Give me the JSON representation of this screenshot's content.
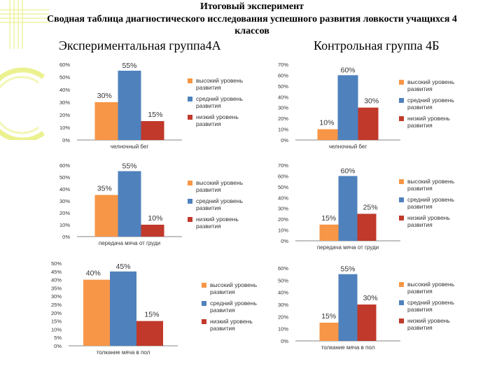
{
  "header": {
    "title": "Итоговый эксперимент",
    "subtitle": "Сводная таблица диагностического исследования успешного развития ловкости учащихся 4 классов"
  },
  "groups": {
    "experimental": "Экспериментальная группа4А",
    "control": "Контрольная группа 4Б"
  },
  "legend": {
    "high": "высокий уровень развития",
    "mid": "средний уровень развития",
    "low": "низкий уровень развития"
  },
  "colors": {
    "high": "#F79646",
    "mid": "#4F81BD",
    "low": "#C0392B",
    "axis": "#868686",
    "deco": "#E8EE7A"
  },
  "chart_data": [
    {
      "type": "bar",
      "id": "exp-shuttle",
      "group": "experimental",
      "xlabel": "челночный бег",
      "series": [
        {
          "name": "высокий уровень развития",
          "value": 30,
          "label": "30%"
        },
        {
          "name": "средний уровень развития",
          "value": 55,
          "label": "55%"
        },
        {
          "name": "низкий уровень развития",
          "value": 15,
          "label": "15%"
        }
      ],
      "ylim": [
        0,
        60
      ],
      "ystep": 10,
      "yticks": [
        "0%",
        "10%",
        "20%",
        "30%",
        "40%",
        "50%",
        "60%"
      ]
    },
    {
      "type": "bar",
      "id": "ctl-shuttle",
      "group": "control",
      "xlabel": "челночный бег",
      "series": [
        {
          "name": "высокий уровень развития",
          "value": 10,
          "label": "10%"
        },
        {
          "name": "средний уровень развития",
          "value": 60,
          "label": "60%"
        },
        {
          "name": "низкий уровень развития",
          "value": 30,
          "label": "30%"
        }
      ],
      "ylim": [
        0,
        70
      ],
      "ystep": 10,
      "yticks": [
        "0%",
        "10%",
        "20%",
        "30%",
        "40%",
        "50%",
        "60%",
        "70%"
      ]
    },
    {
      "type": "bar",
      "id": "exp-pass",
      "group": "experimental",
      "xlabel": "передача мяча от груди",
      "series": [
        {
          "name": "высокий уровень развития",
          "value": 35,
          "label": "35%"
        },
        {
          "name": "средний уровень развития",
          "value": 55,
          "label": "55%"
        },
        {
          "name": "низкий уровень развития",
          "value": 10,
          "label": "10%"
        }
      ],
      "ylim": [
        0,
        60
      ],
      "ystep": 10,
      "yticks": [
        "0%",
        "10%",
        "20%",
        "30%",
        "40%",
        "50%",
        "60%"
      ]
    },
    {
      "type": "bar",
      "id": "ctl-pass",
      "group": "control",
      "xlabel": "передача мяча от груди",
      "series": [
        {
          "name": "высокий уровень развития",
          "value": 15,
          "label": "15%"
        },
        {
          "name": "средний уровень развития",
          "value": 60,
          "label": "60%"
        },
        {
          "name": "низкий уровень развития",
          "value": 25,
          "label": "25%"
        }
      ],
      "ylim": [
        0,
        70
      ],
      "ystep": 10,
      "yticks": [
        "0%",
        "10%",
        "20%",
        "30%",
        "40%",
        "50%",
        "60%",
        "70%"
      ]
    },
    {
      "type": "bar",
      "id": "exp-toss",
      "group": "experimental",
      "xlabel": "толкание мяча в пол",
      "series": [
        {
          "name": "высокий уровень развития",
          "value": 40,
          "label": "40%"
        },
        {
          "name": "средний уровень развития",
          "value": 45,
          "label": "45%"
        },
        {
          "name": "низкий уровень развития",
          "value": 15,
          "label": "15%"
        }
      ],
      "ylim": [
        0,
        50
      ],
      "ystep": 5,
      "yticks": [
        "0%",
        "5%",
        "10%",
        "15%",
        "20%",
        "25%",
        "30%",
        "35%",
        "40%",
        "45%",
        "50%"
      ]
    },
    {
      "type": "bar",
      "id": "ctl-toss",
      "group": "control",
      "xlabel": "толкание мяча в пол",
      "series": [
        {
          "name": "высокий уровень развития",
          "value": 15,
          "label": "15%"
        },
        {
          "name": "средний уровень развития",
          "value": 55,
          "label": "55%"
        },
        {
          "name": "низкий уровень развития",
          "value": 30,
          "label": "30%"
        }
      ],
      "ylim": [
        0,
        60
      ],
      "ystep": 10,
      "yticks": [
        "0%",
        "10%",
        "20%",
        "30%",
        "40%",
        "50%",
        "60%"
      ]
    }
  ]
}
